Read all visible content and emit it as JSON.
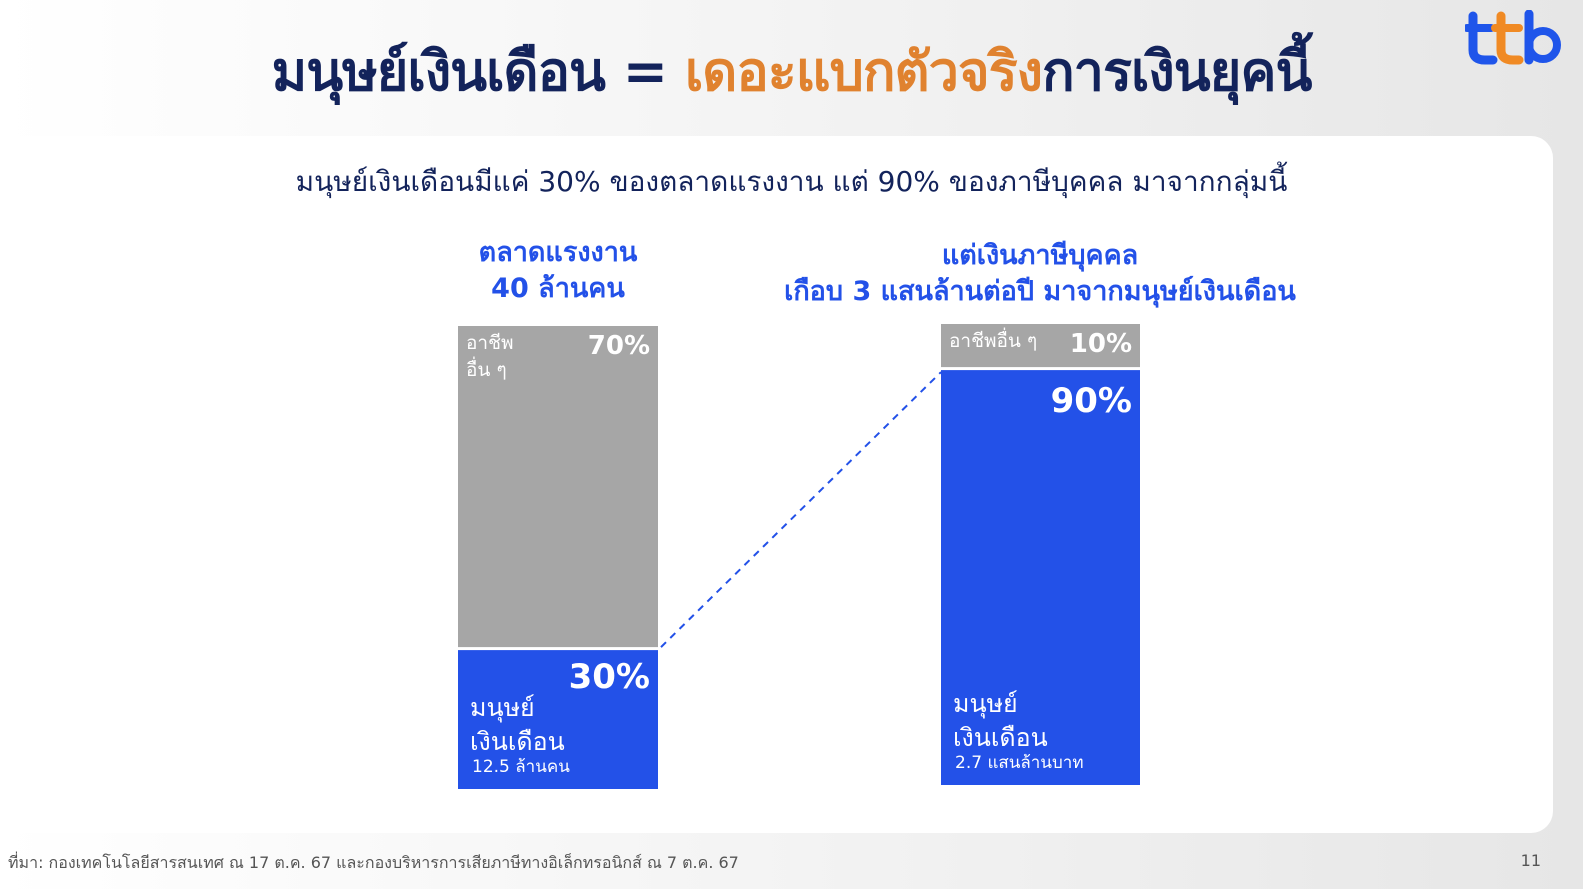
{
  "header": {
    "title_part1": "มนุษย์เงินเดือน  = ",
    "title_accent": "เดอะแบกตัวจริง",
    "title_part2": "การเงินยุคนี้",
    "logo_text": "ttb"
  },
  "subtitle": "มนุษย์เงินเดือนมีแค่ 30% ของตลาดแรงงาน แต่ 90% ของภาษีบุคคล มาจากกลุ่มนี้",
  "left_heading": [
    "ตลาดแรงงาน",
    "40 ล้านคน"
  ],
  "right_heading": [
    "แต่เงินภาษีบุคคล",
    "เกือบ 3 แสนล้านต่อปี มาจากมนุษย์เงินเดือน"
  ],
  "chart_data": {
    "type": "bar",
    "stacked": true,
    "categories": [
      "ตลาดแรงงาน 40 ล้านคน",
      "เงินภาษีบุคคล"
    ],
    "series": [
      {
        "name": "มนุษย์เงินเดือน",
        "values": [
          30,
          90
        ],
        "value_labels": [
          "30%",
          "90%"
        ],
        "segment_text": [
          [
            "มนุษย์",
            "เงินเดือน"
          ],
          [
            "มนุษย์",
            "เงินเดือน"
          ]
        ],
        "sub_labels": [
          "12.5 ล้านคน",
          "2.7 แสนล้านบาท"
        ],
        "color": "#2351e8"
      },
      {
        "name": "อาชีพอื่น ๆ",
        "values": [
          70,
          10
        ],
        "value_labels": [
          "70%",
          "10%"
        ],
        "segment_text": [
          [
            "อาชีพ",
            "อื่น ๆ"
          ],
          [
            "อาชีพอื่น ๆ"
          ]
        ],
        "color": "#a6a6a6"
      }
    ],
    "ylim": [
      0,
      100
    ],
    "connector": "dashed line from top of 30% segment to top of 90% segment"
  },
  "footer": {
    "source": "ที่มา: กองเทคโนโลยีสารสนเทศ ณ 17 ต.ค. 67 และกองบริหารการเสียภาษีทางอิเล็กทรอนิกส์ ณ 7 ต.ค. 67",
    "page_number": "11"
  }
}
